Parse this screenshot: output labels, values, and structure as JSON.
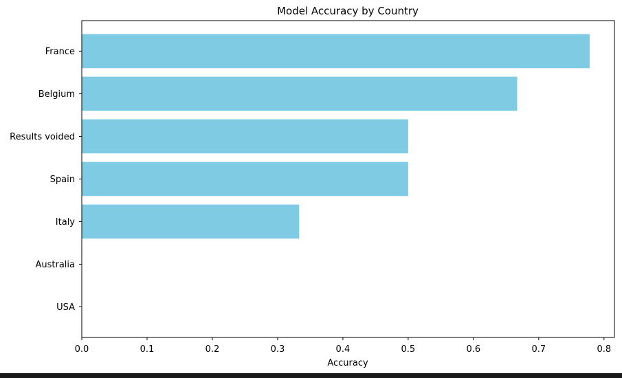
{
  "chart_data": {
    "type": "bar",
    "orientation": "horizontal",
    "title": "Model Accuracy by Country",
    "xlabel": "Accuracy",
    "ylabel": "",
    "categories": [
      "France",
      "Belgium",
      "Results voided",
      "Spain",
      "Italy",
      "Australia",
      "USA"
    ],
    "values": [
      0.778,
      0.667,
      0.5,
      0.5,
      0.333,
      0.0,
      0.0
    ],
    "xlim": [
      0,
      0.816
    ],
    "xticks": [
      0.0,
      0.1,
      0.2,
      0.3,
      0.4,
      0.5,
      0.6,
      0.7,
      0.8
    ],
    "xtick_labels": [
      "0.0",
      "0.1",
      "0.2",
      "0.3",
      "0.4",
      "0.5",
      "0.6",
      "0.7",
      "0.8"
    ],
    "bar_color": "#7fcbe4",
    "grid": false,
    "legend": false
  }
}
